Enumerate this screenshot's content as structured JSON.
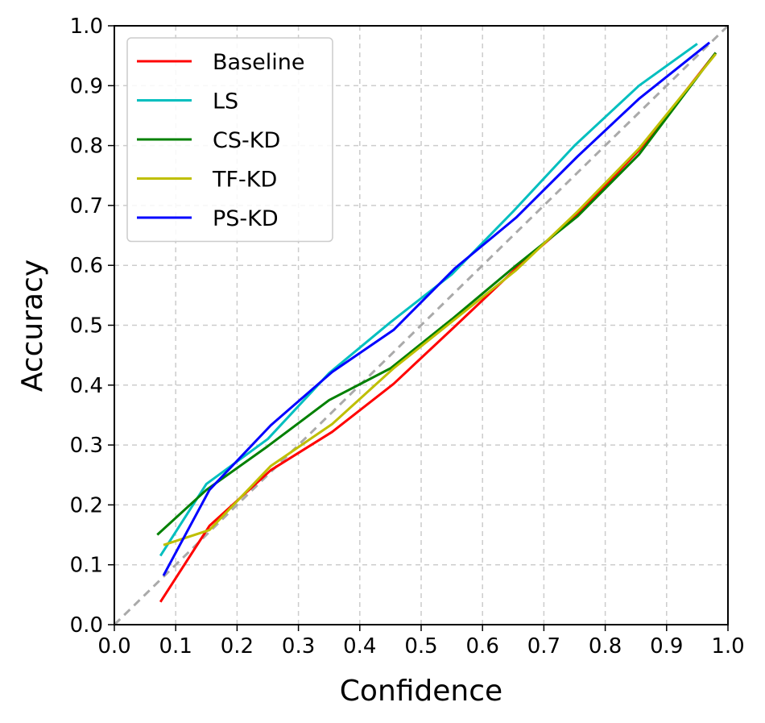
{
  "chart_data": {
    "type": "line",
    "title": "",
    "xlabel": "Confidence",
    "ylabel": "Accuracy",
    "xlim": [
      0.0,
      1.0
    ],
    "ylim": [
      0.0,
      1.0
    ],
    "xticks": [
      "0.0",
      "0.1",
      "0.2",
      "0.3",
      "0.4",
      "0.5",
      "0.6",
      "0.7",
      "0.8",
      "0.9",
      "1.0"
    ],
    "yticks": [
      "0.0",
      "0.1",
      "0.2",
      "0.3",
      "0.4",
      "0.5",
      "0.6",
      "0.7",
      "0.8",
      "0.9",
      "1.0"
    ],
    "grid": true,
    "legend_position": "top-left",
    "reference_line": {
      "x": [
        0.0,
        1.0
      ],
      "y": [
        0.0,
        1.0
      ],
      "color": "#aaaaaa",
      "style": "dashed"
    },
    "series": [
      {
        "name": "Baseline",
        "color": "#ff0000",
        "x": [
          0.075,
          0.155,
          0.255,
          0.355,
          0.455,
          0.555,
          0.655,
          0.755,
          0.855,
          0.98
        ],
        "y": [
          0.038,
          0.165,
          0.258,
          0.322,
          0.402,
          0.498,
          0.595,
          0.685,
          0.792,
          0.955
        ]
      },
      {
        "name": "LS",
        "color": "#00bfbf",
        "x": [
          0.075,
          0.15,
          0.25,
          0.35,
          0.45,
          0.55,
          0.65,
          0.75,
          0.855,
          0.95
        ],
        "y": [
          0.115,
          0.235,
          0.31,
          0.42,
          0.505,
          0.585,
          0.69,
          0.8,
          0.9,
          0.97
        ]
      },
      {
        "name": "CS-KD",
        "color": "#008000",
        "x": [
          0.07,
          0.15,
          0.25,
          0.35,
          0.45,
          0.55,
          0.655,
          0.755,
          0.855,
          0.98
        ],
        "y": [
          0.15,
          0.225,
          0.298,
          0.375,
          0.428,
          0.51,
          0.6,
          0.682,
          0.785,
          0.955
        ]
      },
      {
        "name": "TF-KD",
        "color": "#bfbf00",
        "x": [
          0.08,
          0.155,
          0.255,
          0.355,
          0.455,
          0.555,
          0.655,
          0.755,
          0.855,
          0.98
        ],
        "y": [
          0.133,
          0.158,
          0.265,
          0.335,
          0.428,
          0.51,
          0.592,
          0.69,
          0.795,
          0.953
        ]
      },
      {
        "name": "PS-KD",
        "color": "#0000ff",
        "x": [
          0.08,
          0.155,
          0.255,
          0.355,
          0.455,
          0.555,
          0.655,
          0.755,
          0.855,
          0.97
        ],
        "y": [
          0.082,
          0.225,
          0.333,
          0.422,
          0.492,
          0.595,
          0.68,
          0.782,
          0.878,
          0.972
        ]
      }
    ]
  }
}
